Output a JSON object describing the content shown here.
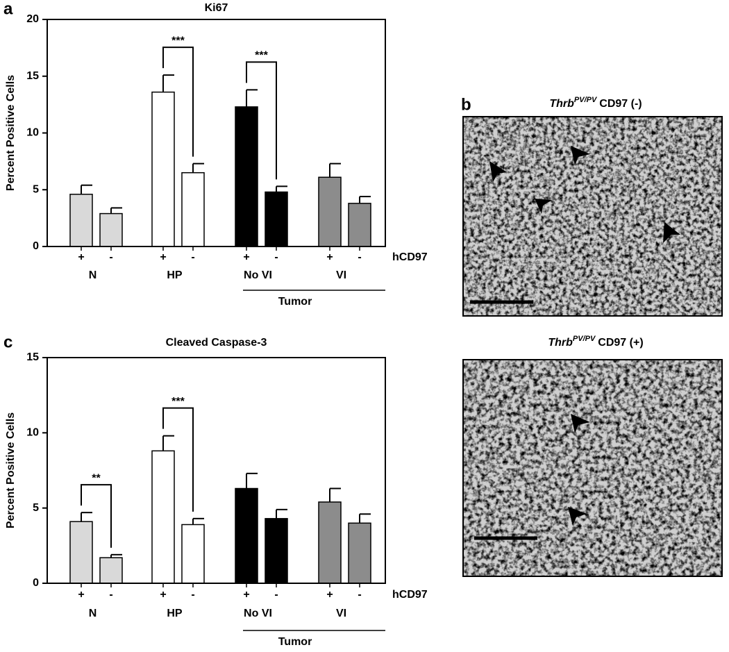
{
  "chart_data": [
    {
      "type": "bar",
      "panel_label": "a",
      "title": "Ki67",
      "y_label": "Percent Positive Cells",
      "x_label": "hCD97",
      "categories": [
        "+",
        "-",
        "+",
        "-",
        "+",
        "-",
        "+",
        "-"
      ],
      "groups": [
        "N",
        "HP",
        "No VI",
        "VI"
      ],
      "group_span_label": "Tumor",
      "values": [
        4.6,
        2.9,
        13.6,
        6.5,
        12.3,
        4.8,
        6.1,
        3.8
      ],
      "errors": [
        0.8,
        0.5,
        1.5,
        0.8,
        1.5,
        0.5,
        1.2,
        0.6
      ],
      "colors": [
        "#d9d9d9",
        "#d9d9d9",
        "#ffffff",
        "#ffffff",
        "#000000",
        "#000000",
        "#8c8c8c",
        "#8c8c8c"
      ],
      "group_annotations": [
        null,
        "***",
        "***",
        null
      ],
      "ylim": [
        0,
        20
      ],
      "yticks": [
        0,
        5,
        10,
        15,
        20
      ],
      "grid": false
    },
    {
      "type": "bar",
      "panel_label": "c",
      "title": "Cleaved Caspase-3",
      "y_label": "Percent Positive Cells",
      "x_label": "hCD97",
      "categories": [
        "+",
        "-",
        "+",
        "-",
        "+",
        "-",
        "+",
        "-"
      ],
      "groups": [
        "N",
        "HP",
        "No VI",
        "VI"
      ],
      "group_span_label": "Tumor",
      "values": [
        4.1,
        1.7,
        8.8,
        3.9,
        6.3,
        4.3,
        5.4,
        4.0
      ],
      "errors": [
        0.6,
        0.2,
        1.0,
        0.4,
        1.0,
        0.6,
        0.9,
        0.6
      ],
      "colors": [
        "#d9d9d9",
        "#d9d9d9",
        "#ffffff",
        "#ffffff",
        "#000000",
        "#000000",
        "#8c8c8c",
        "#8c8c8c"
      ],
      "group_annotations": [
        "**",
        "***",
        null,
        null
      ],
      "ylim": [
        0,
        15
      ],
      "yticks": [
        0,
        5,
        10,
        15
      ],
      "grid": false
    }
  ],
  "images": {
    "panel_label": "b",
    "items": [
      {
        "gene": "Thrb",
        "superscript": "PV/PV",
        "label": "CD97 (-)"
      },
      {
        "gene": "Thrb",
        "superscript": "PV/PV",
        "label": "CD97 (+)"
      }
    ]
  }
}
